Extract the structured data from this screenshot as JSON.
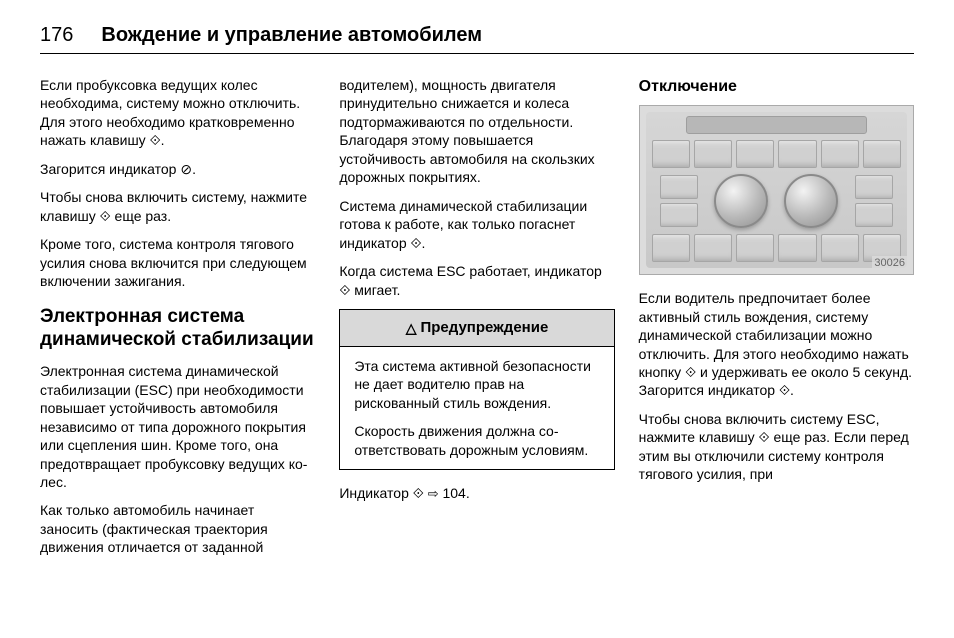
{
  "page_number": "176",
  "header_title": "Вождение и управление автомобилем",
  "glyphs": {
    "button": "⟐",
    "indicator_off": "⊘",
    "esc": "⟐",
    "warning_triangle": "△",
    "arrow": "⇨",
    "esc_off": "⟐"
  },
  "col1": {
    "p1": "Если пробуксовка ведущих колес необходима, систему можно от­ключить. Для этого необходимо кратковременно нажать кла­вишу ",
    "p1_end": ".",
    "p2a": "Загорится индикатор ",
    "p2b": ".",
    "p3a": "Чтобы снова включить систему, на­жмите клавишу ",
    "p3b": " еще раз.",
    "p4": "Кроме того, система контроля тяго­вого усилия снова включится при следующем включении зажигания.",
    "h2": "Электронная система динамической стабилизации",
    "p5": "Электронная система динамиче­ской стабилизации (ESC) при необ­ходимости повышает устойчивость автомобиля независимо от типа дорожного покрытия или сцепле­ния шин. Кроме того, она предот­вращает пробуксовку ведущих ко­лес.",
    "p6": "Как только автомобиль начинает заносить (фактическая траектория движения отличается от заданной"
  },
  "col2": {
    "p1": "водителем), мощность двигателя принудительно снижается и колеса подтормаживаются по отдельно­сти. Благодаря этому повышается устойчивость автомобиля на скользких дорожных покрытиях.",
    "p2a": "Система динамической стабилиза­ции готова к работе, как только по­гаснет индикатор ",
    "p2b": ".",
    "p3a": "Когда система ESC работает, ин­дикатор ",
    "p3b": " мигает.",
    "warn_title": "Предупреждение",
    "warn_p1": "Эта система активной безопас­ности не дает водителю прав на рискованный стиль вождения.",
    "warn_p2": "Скорость движения должна со­ответствовать дорожным усло­виям.",
    "p4a": "Индикатор ",
    "p4b": " 104."
  },
  "col3": {
    "h3": "Отключение",
    "img_label": "30026",
    "p1a": "Если водитель предпочитает бо­лее активный стиль вождения, сис­тему динамической стабилизации можно отключить. Для этого необ­ходимо нажать кнопку ",
    "p1b": " и удержи­вать ее около 5 секунд. Загорится индикатор ",
    "p1c": ".",
    "p2a": "Чтобы снова включить систему ESC, нажмите клавишу ",
    "p2b": " еще раз. Если перед этим вы отключили сис­тему контроля тягового усилия, при"
  }
}
